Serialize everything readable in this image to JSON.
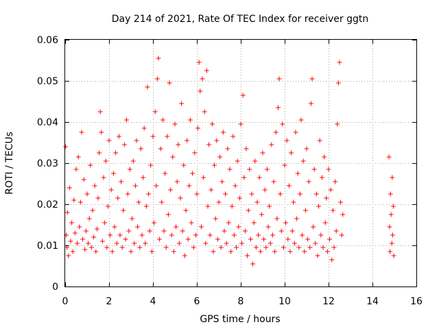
{
  "chart_data": {
    "type": "scatter",
    "title": "Day 214 of 2021, Rate Of TEC Index for receiver ggtn",
    "xlabel": "GPS time / hours",
    "ylabel": "ROTI / TECUs",
    "xlim": [
      0,
      16
    ],
    "ylim": [
      0,
      0.06
    ],
    "xticks": [
      0,
      2,
      4,
      6,
      8,
      10,
      12,
      14,
      16
    ],
    "xtick_labels": [
      "0",
      "2",
      "4",
      "6",
      "8",
      "10",
      "12",
      "14",
      "16"
    ],
    "yticks": [
      0,
      0.01,
      0.02,
      0.03,
      0.04,
      0.05,
      0.06
    ],
    "ytick_labels": [
      "0",
      "0.01",
      "0.02",
      "0.03",
      "0.04",
      "0.05",
      "0.06"
    ],
    "grid": true,
    "marker": "+",
    "color": "#ff0000",
    "series": [
      {
        "name": "ROTI",
        "points": [
          [
            0.02,
            0.034
          ],
          [
            0.05,
            0.0125
          ],
          [
            0.08,
            0.0095
          ],
          [
            0.1,
            0.018
          ],
          [
            0.15,
            0.0075
          ],
          [
            0.2,
            0.024
          ],
          [
            0.25,
            0.011
          ],
          [
            0.3,
            0.0155
          ],
          [
            0.35,
            0.0085
          ],
          [
            0.4,
            0.021
          ],
          [
            0.45,
            0.013
          ],
          [
            0.5,
            0.0285
          ],
          [
            0.55,
            0.0105
          ],
          [
            0.6,
            0.0315
          ],
          [
            0.65,
            0.0145
          ],
          [
            0.7,
            0.0205
          ],
          [
            0.75,
            0.0375
          ],
          [
            0.8,
            0.0115
          ],
          [
            0.85,
            0.026
          ],
          [
            0.9,
            0.009
          ],
          [
            0.95,
            0.0135
          ],
          [
            1.0,
            0.0225
          ],
          [
            1.05,
            0.0105
          ],
          [
            1.1,
            0.0165
          ],
          [
            1.15,
            0.0295
          ],
          [
            1.2,
            0.0095
          ],
          [
            1.25,
            0.0185
          ],
          [
            1.3,
            0.012
          ],
          [
            1.35,
            0.0245
          ],
          [
            1.4,
            0.0085
          ],
          [
            1.45,
            0.014
          ],
          [
            1.5,
            0.0215
          ],
          [
            1.55,
            0.0325
          ],
          [
            1.6,
            0.0425
          ],
          [
            1.65,
            0.0375
          ],
          [
            1.7,
            0.011
          ],
          [
            1.75,
            0.0265
          ],
          [
            1.8,
            0.0155
          ],
          [
            1.85,
            0.0305
          ],
          [
            1.9,
            0.0095
          ],
          [
            1.95,
            0.0195
          ],
          [
            2.0,
            0.0355
          ],
          [
            2.05,
            0.0125
          ],
          [
            2.1,
            0.0235
          ],
          [
            2.15,
            0.0085
          ],
          [
            2.2,
            0.0275
          ],
          [
            2.25,
            0.0145
          ],
          [
            2.3,
            0.0325
          ],
          [
            2.35,
            0.0105
          ],
          [
            2.4,
            0.0215
          ],
          [
            2.45,
            0.0365
          ],
          [
            2.5,
            0.0125
          ],
          [
            2.55,
            0.0255
          ],
          [
            2.6,
            0.0095
          ],
          [
            2.65,
            0.0185
          ],
          [
            2.7,
            0.0345
          ],
          [
            2.75,
            0.0115
          ],
          [
            2.8,
            0.0405
          ],
          [
            2.85,
            0.0225
          ],
          [
            2.9,
            0.0135
          ],
          [
            2.95,
            0.0285
          ],
          [
            3.0,
            0.0085
          ],
          [
            3.05,
            0.0165
          ],
          [
            3.1,
            0.0305
          ],
          [
            3.15,
            0.0105
          ],
          [
            3.2,
            0.0245
          ],
          [
            3.25,
            0.0355
          ],
          [
            3.3,
            0.0145
          ],
          [
            3.35,
            0.0205
          ],
          [
            3.4,
            0.0095
          ],
          [
            3.45,
            0.0335
          ],
          [
            3.5,
            0.0125
          ],
          [
            3.55,
            0.0265
          ],
          [
            3.6,
            0.0385
          ],
          [
            3.65,
            0.0105
          ],
          [
            3.7,
            0.0195
          ],
          [
            3.75,
            0.0485
          ],
          [
            3.8,
            0.0225
          ],
          [
            3.85,
            0.0135
          ],
          [
            3.9,
            0.0295
          ],
          [
            3.95,
            0.0085
          ],
          [
            4.0,
            0.0365
          ],
          [
            4.05,
            0.0155
          ],
          [
            4.1,
            0.0425
          ],
          [
            4.15,
            0.0245
          ],
          [
            4.2,
            0.0505
          ],
          [
            4.25,
            0.0555
          ],
          [
            4.3,
            0.0115
          ],
          [
            4.35,
            0.0335
          ],
          [
            4.4,
            0.0205
          ],
          [
            4.45,
            0.0405
          ],
          [
            4.5,
            0.0135
          ],
          [
            4.55,
            0.0275
          ],
          [
            4.6,
            0.0095
          ],
          [
            4.65,
            0.0365
          ],
          [
            4.7,
            0.0175
          ],
          [
            4.75,
            0.0495
          ],
          [
            4.8,
            0.0235
          ],
          [
            4.85,
            0.0125
          ],
          [
            4.9,
            0.0315
          ],
          [
            4.95,
            0.0085
          ],
          [
            5.0,
            0.0395
          ],
          [
            5.05,
            0.0145
          ],
          [
            5.1,
            0.0255
          ],
          [
            5.15,
            0.0345
          ],
          [
            5.2,
            0.0105
          ],
          [
            5.25,
            0.0215
          ],
          [
            5.3,
            0.0445
          ],
          [
            5.35,
            0.0135
          ],
          [
            5.4,
            0.0295
          ],
          [
            5.45,
            0.0075
          ],
          [
            5.5,
            0.0185
          ],
          [
            5.55,
            0.0355
          ],
          [
            5.6,
            0.0115
          ],
          [
            5.65,
            0.0245
          ],
          [
            5.7,
            0.0405
          ],
          [
            5.75,
            0.0155
          ],
          [
            5.8,
            0.0275
          ],
          [
            5.85,
            0.0095
          ],
          [
            5.9,
            0.0325
          ],
          [
            5.95,
            0.0125
          ],
          [
            6.0,
            0.0225
          ],
          [
            6.05,
            0.0385
          ],
          [
            6.1,
            0.0545
          ],
          [
            6.15,
            0.0475
          ],
          [
            6.2,
            0.0145
          ],
          [
            6.25,
            0.0505
          ],
          [
            6.3,
            0.0265
          ],
          [
            6.35,
            0.0425
          ],
          [
            6.4,
            0.0105
          ],
          [
            6.45,
            0.0525
          ],
          [
            6.5,
            0.0195
          ],
          [
            6.55,
            0.0345
          ],
          [
            6.6,
            0.0125
          ],
          [
            6.65,
            0.0235
          ],
          [
            6.7,
            0.0395
          ],
          [
            6.75,
            0.0085
          ],
          [
            6.8,
            0.0295
          ],
          [
            6.85,
            0.0165
          ],
          [
            6.9,
            0.0355
          ],
          [
            6.95,
            0.0115
          ],
          [
            7.0,
            0.0205
          ],
          [
            7.05,
            0.0315
          ],
          [
            7.1,
            0.0095
          ],
          [
            7.15,
            0.0255
          ],
          [
            7.2,
            0.0375
          ],
          [
            7.25,
            0.0135
          ],
          [
            7.3,
            0.0225
          ],
          [
            7.35,
            0.0105
          ],
          [
            7.4,
            0.0335
          ],
          [
            7.45,
            0.0155
          ],
          [
            7.5,
            0.0285
          ],
          [
            7.55,
            0.0085
          ],
          [
            7.6,
            0.0195
          ],
          [
            7.65,
            0.0365
          ],
          [
            7.7,
            0.0125
          ],
          [
            7.75,
            0.0245
          ],
          [
            7.8,
            0.0095
          ],
          [
            7.85,
            0.0305
          ],
          [
            7.9,
            0.0145
          ],
          [
            7.95,
            0.0215
          ],
          [
            8.0,
            0.0395
          ],
          [
            8.05,
            0.0105
          ],
          [
            8.1,
            0.0465
          ],
          [
            8.15,
            0.0265
          ],
          [
            8.2,
            0.0135
          ],
          [
            8.25,
            0.0335
          ],
          [
            8.3,
            0.0075
          ],
          [
            8.35,
            0.0185
          ],
          [
            8.4,
            0.0285
          ],
          [
            8.45,
            0.0115
          ],
          [
            8.5,
            0.0225
          ],
          [
            8.55,
            0.0055
          ],
          [
            8.6,
            0.0155
          ],
          [
            8.65,
            0.0305
          ],
          [
            8.7,
            0.0095
          ],
          [
            8.75,
            0.0205
          ],
          [
            8.8,
            0.0125
          ],
          [
            8.85,
            0.0265
          ],
          [
            8.9,
            0.0085
          ],
          [
            8.95,
            0.0175
          ],
          [
            9.0,
            0.0325
          ],
          [
            9.05,
            0.0115
          ],
          [
            9.1,
            0.0235
          ],
          [
            9.15,
            0.0095
          ],
          [
            9.2,
            0.0285
          ],
          [
            9.25,
            0.0145
          ],
          [
            9.3,
            0.0195
          ],
          [
            9.35,
            0.0105
          ],
          [
            9.4,
            0.0345
          ],
          [
            9.45,
            0.0125
          ],
          [
            9.5,
            0.0255
          ],
          [
            9.55,
            0.0085
          ],
          [
            9.6,
            0.0375
          ],
          [
            9.65,
            0.0165
          ],
          [
            9.7,
            0.0435
          ],
          [
            9.75,
            0.0505
          ],
          [
            9.8,
            0.0225
          ],
          [
            9.85,
            0.0135
          ],
          [
            9.9,
            0.0395
          ],
          [
            9.95,
            0.0095
          ],
          [
            10.0,
            0.0295
          ],
          [
            10.05,
            0.0155
          ],
          [
            10.1,
            0.0355
          ],
          [
            10.15,
            0.0115
          ],
          [
            10.2,
            0.0245
          ],
          [
            10.25,
            0.0085
          ],
          [
            10.3,
            0.0325
          ],
          [
            10.35,
            0.0135
          ],
          [
            10.4,
            0.0205
          ],
          [
            10.45,
            0.0105
          ],
          [
            10.5,
            0.0375
          ],
          [
            10.55,
            0.0165
          ],
          [
            10.6,
            0.0275
          ],
          [
            10.65,
            0.0095
          ],
          [
            10.7,
            0.0225
          ],
          [
            10.75,
            0.0405
          ],
          [
            10.8,
            0.0125
          ],
          [
            10.85,
            0.0305
          ],
          [
            10.9,
            0.0085
          ],
          [
            10.95,
            0.0185
          ],
          [
            11.0,
            0.0335
          ],
          [
            11.05,
            0.0115
          ],
          [
            11.1,
            0.0255
          ],
          [
            11.15,
            0.0095
          ],
          [
            11.2,
            0.0445
          ],
          [
            11.25,
            0.0505
          ],
          [
            11.3,
            0.0145
          ],
          [
            11.35,
            0.0285
          ],
          [
            11.4,
            0.0105
          ],
          [
            11.45,
            0.0225
          ],
          [
            11.5,
            0.0075
          ],
          [
            11.55,
            0.0195
          ],
          [
            11.6,
            0.0355
          ],
          [
            11.65,
            0.0125
          ],
          [
            11.7,
            0.0265
          ],
          [
            11.75,
            0.0095
          ],
          [
            11.8,
            0.0315
          ],
          [
            11.85,
            0.0155
          ],
          [
            11.9,
            0.0215
          ],
          [
            11.95,
            0.0085
          ],
          [
            12.0,
            0.0285
          ],
          [
            12.05,
            0.0115
          ],
          [
            12.1,
            0.0235
          ],
          [
            12.15,
            0.0065
          ],
          [
            12.2,
            0.0185
          ],
          [
            12.25,
            0.0095
          ],
          [
            12.3,
            0.0255
          ],
          [
            12.35,
            0.0135
          ],
          [
            12.4,
            0.0395
          ],
          [
            12.45,
            0.0495
          ],
          [
            12.5,
            0.0545
          ],
          [
            12.55,
            0.0205
          ],
          [
            12.6,
            0.0125
          ],
          [
            12.65,
            0.0175
          ],
          [
            14.75,
            0.0315
          ],
          [
            14.78,
            0.0145
          ],
          [
            14.8,
            0.0085
          ],
          [
            14.82,
            0.0225
          ],
          [
            14.85,
            0.0175
          ],
          [
            14.88,
            0.0105
          ],
          [
            14.9,
            0.0265
          ],
          [
            14.92,
            0.0125
          ],
          [
            14.95,
            0.0195
          ],
          [
            14.97,
            0.0075
          ]
        ]
      }
    ]
  }
}
